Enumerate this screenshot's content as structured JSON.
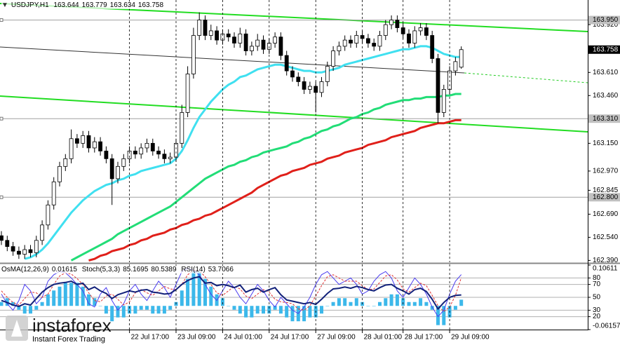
{
  "chart_data": [
    {
      "type": "candlestick",
      "symbol": "USDJPY,H1",
      "categories": [
        null,
        null,
        null,
        null,
        null,
        null,
        null,
        null,
        null,
        null,
        null,
        null,
        null,
        null,
        null,
        null,
        null,
        null,
        null,
        null,
        null,
        null,
        "22 Jul 17:00",
        null,
        null,
        null,
        null,
        null,
        null,
        null,
        "23 Jul 09:00",
        null,
        null,
        null,
        null,
        null,
        null,
        null,
        "24 Jul 01:00",
        null,
        null,
        null,
        null,
        null,
        null,
        null,
        "24 Jul 17:00",
        null,
        null,
        null,
        null,
        null,
        null,
        null,
        "27 Jul 09:00",
        null,
        null,
        null,
        null,
        null,
        null,
        null,
        "28 Jul 01:00",
        null,
        null,
        null,
        null,
        null,
        null,
        "28 Jul 17:00",
        null,
        null,
        null,
        null,
        null,
        null,
        null,
        "29 Jul 09:00",
        null,
        null
      ],
      "open": [
        162.55,
        162.52,
        162.48,
        162.45,
        162.43,
        162.46,
        162.44,
        162.52,
        162.62,
        162.75,
        162.9,
        163.0,
        163.05,
        163.18,
        163.15,
        163.2,
        163.12,
        163.16,
        163.1,
        163.05,
        162.92,
        163.0,
        163.05,
        163.1,
        163.08,
        163.12,
        163.15,
        163.1,
        163.08,
        163.05,
        163.06,
        163.15,
        163.35,
        163.6,
        163.85,
        163.95,
        163.85,
        163.88,
        163.82,
        163.86,
        163.84,
        163.8,
        163.86,
        163.75,
        163.78,
        163.82,
        163.76,
        163.8,
        163.84,
        163.72,
        163.62,
        163.58,
        163.55,
        163.5,
        163.52,
        163.48,
        163.55,
        163.65,
        163.75,
        163.78,
        163.82,
        163.8,
        163.85,
        163.83,
        163.8,
        163.78,
        163.85,
        163.92,
        163.95,
        163.9,
        163.86,
        163.8,
        163.88,
        163.9,
        163.85,
        163.7,
        163.35,
        163.5,
        163.62,
        163.644
      ],
      "high": [
        162.58,
        162.55,
        162.51,
        162.48,
        162.49,
        162.49,
        162.55,
        162.65,
        162.78,
        162.93,
        163.03,
        163.08,
        163.24,
        163.21,
        163.23,
        163.23,
        163.19,
        163.19,
        163.13,
        163.08,
        163.03,
        163.08,
        163.13,
        163.13,
        163.15,
        163.18,
        163.18,
        163.13,
        163.11,
        163.09,
        163.18,
        163.4,
        163.65,
        163.9,
        164.0,
        163.98,
        163.92,
        163.91,
        163.89,
        163.89,
        163.87,
        163.9,
        163.89,
        163.81,
        163.86,
        163.85,
        163.83,
        163.87,
        163.87,
        163.75,
        163.65,
        163.61,
        163.58,
        163.55,
        163.55,
        163.58,
        163.68,
        163.78,
        163.81,
        163.85,
        163.85,
        163.88,
        163.88,
        163.86,
        163.83,
        163.88,
        163.95,
        163.98,
        163.98,
        163.93,
        163.89,
        163.91,
        163.93,
        163.93,
        163.88,
        163.73,
        163.53,
        163.65,
        163.71,
        163.779
      ],
      "low": [
        162.49,
        162.45,
        162.42,
        162.4,
        162.4,
        162.41,
        162.41,
        162.49,
        162.59,
        162.72,
        162.87,
        162.97,
        163.02,
        163.12,
        163.12,
        163.09,
        163.09,
        163.07,
        163.02,
        162.75,
        162.89,
        162.97,
        163.02,
        163.05,
        163.05,
        163.09,
        163.07,
        163.05,
        163.02,
        163.02,
        163.03,
        163.12,
        163.32,
        163.57,
        163.82,
        163.82,
        163.82,
        163.79,
        163.79,
        163.81,
        163.77,
        163.77,
        163.72,
        163.72,
        163.75,
        163.73,
        163.73,
        163.77,
        163.69,
        163.59,
        163.55,
        163.52,
        163.47,
        163.47,
        163.35,
        163.45,
        163.52,
        163.62,
        163.72,
        163.75,
        163.77,
        163.77,
        163.8,
        163.77,
        163.75,
        163.75,
        163.82,
        163.89,
        163.87,
        163.83,
        163.77,
        163.77,
        163.85,
        163.82,
        163.67,
        163.28,
        163.32,
        163.47,
        163.59,
        163.634
      ],
      "close": [
        162.52,
        162.48,
        162.45,
        162.43,
        162.46,
        162.44,
        162.52,
        162.62,
        162.75,
        162.9,
        163.0,
        163.05,
        163.18,
        163.15,
        163.2,
        163.12,
        163.16,
        163.1,
        163.05,
        162.92,
        163.0,
        163.05,
        163.1,
        163.08,
        163.12,
        163.15,
        163.1,
        163.08,
        163.05,
        163.06,
        163.15,
        163.35,
        163.6,
        163.85,
        163.95,
        163.85,
        163.88,
        163.82,
        163.86,
        163.84,
        163.8,
        163.86,
        163.75,
        163.78,
        163.82,
        163.76,
        163.8,
        163.84,
        163.72,
        163.62,
        163.58,
        163.55,
        163.5,
        163.52,
        163.48,
        163.55,
        163.65,
        163.75,
        163.78,
        163.82,
        163.8,
        163.85,
        163.83,
        163.8,
        163.78,
        163.85,
        163.92,
        163.95,
        163.9,
        163.86,
        163.8,
        163.88,
        163.9,
        163.85,
        163.7,
        163.35,
        163.5,
        163.62,
        163.68,
        163.758
      ],
      "lines": [
        {
          "color": "#40e0f0",
          "values": [
            null,
            null,
            null,
            null,
            162.4,
            162.41,
            162.43,
            162.46,
            162.5,
            162.55,
            162.6,
            162.65,
            162.7,
            162.74,
            162.78,
            162.81,
            162.84,
            162.86,
            162.88,
            162.89,
            162.91,
            162.92,
            162.94,
            162.95,
            162.97,
            162.98,
            162.99,
            163.0,
            163.01,
            163.02,
            163.05,
            163.1,
            163.17,
            163.25,
            163.32,
            163.37,
            163.42,
            163.46,
            163.5,
            163.53,
            163.55,
            163.58,
            163.59,
            163.61,
            163.63,
            163.64,
            163.65,
            163.66,
            163.66,
            163.65,
            163.64,
            163.63,
            163.62,
            163.62,
            163.61,
            163.61,
            163.62,
            163.63,
            163.64,
            163.66,
            163.67,
            163.68,
            163.69,
            163.7,
            163.71,
            163.72,
            163.73,
            163.74,
            163.75,
            163.76,
            163.76,
            163.77,
            163.78,
            163.78,
            163.77,
            163.75,
            163.73,
            163.72,
            163.71,
            163.71
          ]
        },
        {
          "color": "#22dd77",
          "values": [
            null,
            null,
            null,
            null,
            null,
            null,
            null,
            null,
            null,
            null,
            null,
            null,
            162.39,
            162.41,
            162.43,
            162.45,
            162.47,
            162.49,
            162.51,
            162.53,
            162.56,
            162.58,
            162.6,
            162.62,
            162.64,
            162.66,
            162.68,
            162.7,
            162.72,
            162.74,
            162.77,
            162.8,
            162.83,
            162.86,
            162.89,
            162.92,
            162.94,
            162.96,
            162.98,
            163.0,
            163.01,
            163.03,
            163.04,
            163.06,
            163.07,
            163.09,
            163.1,
            163.11,
            163.12,
            163.13,
            163.15,
            163.16,
            163.18,
            163.19,
            163.21,
            163.23,
            163.24,
            163.26,
            163.27,
            163.29,
            163.31,
            163.32,
            163.34,
            163.35,
            163.37,
            163.38,
            163.4,
            163.41,
            163.42,
            163.43,
            163.43,
            163.44,
            163.44,
            163.45,
            163.45,
            163.45,
            163.46,
            163.46,
            163.47,
            163.47
          ]
        },
        {
          "color": "#e0201a",
          "values": [
            null,
            null,
            null,
            null,
            null,
            null,
            null,
            null,
            null,
            null,
            null,
            null,
            null,
            null,
            null,
            162.39,
            162.4,
            162.42,
            162.43,
            162.45,
            162.46,
            162.47,
            162.49,
            162.5,
            162.52,
            162.53,
            162.55,
            162.56,
            162.57,
            162.59,
            162.6,
            162.62,
            162.63,
            162.65,
            162.66,
            162.68,
            162.69,
            162.71,
            162.73,
            162.75,
            162.77,
            162.79,
            162.81,
            162.83,
            162.86,
            162.88,
            162.9,
            162.92,
            162.94,
            162.95,
            162.97,
            162.98,
            162.99,
            163.01,
            163.02,
            163.03,
            163.05,
            163.06,
            163.07,
            163.09,
            163.1,
            163.11,
            163.12,
            163.14,
            163.15,
            163.16,
            163.17,
            163.19,
            163.2,
            163.21,
            163.22,
            163.23,
            163.25,
            163.26,
            163.27,
            163.28,
            163.28,
            163.29,
            163.3,
            163.3
          ]
        }
      ],
      "ylim": [
        162.378,
        164.08
      ],
      "yticks": [
        {
          "value": 163.92,
          "label": "163.920"
        },
        {
          "value": 163.61,
          "label": "163.610"
        },
        {
          "value": 163.46,
          "label": "163.460"
        },
        {
          "value": 163.15,
          "label": "163.150"
        },
        {
          "value": 162.97,
          "label": "162.970"
        },
        162.845,
        {
          "value": 162.69,
          "label": "162.690"
        },
        {
          "value": 162.54,
          "label": "162.540"
        },
        {
          "value": 162.39,
          "label": "162.390"
        }
      ],
      "levels": [
        {
          "value": 163.95,
          "label": "163.950"
        },
        {
          "value": 163.31,
          "label": "163.310"
        },
        {
          "value": 162.8,
          "label": "162.800"
        }
      ],
      "grid": true
    },
    {
      "type": "oscillator",
      "series": [
        {
          "name": "OsMA(12,26,9)",
          "color": "#3cb8ea",
          "axis": "y2",
          "values": [
            0.01,
            0.02,
            0.01,
            -0.01,
            -0.02,
            -0.02,
            -0.01,
            0.01,
            0.03,
            0.04,
            0.05,
            0.06,
            0.06,
            0.06,
            0.05,
            0.03,
            0.02,
            0.0,
            -0.02,
            -0.04,
            -0.03,
            -0.03,
            -0.02,
            -0.02,
            -0.01,
            -0.01,
            -0.02,
            -0.02,
            -0.02,
            -0.01,
            0.01,
            0.04,
            0.07,
            0.09,
            0.09,
            0.07,
            0.05,
            0.03,
            0.02,
            0.0,
            -0.01,
            -0.02,
            -0.03,
            -0.03,
            -0.02,
            -0.02,
            -0.02,
            -0.01,
            -0.02,
            -0.03,
            -0.04,
            -0.04,
            -0.04,
            -0.03,
            -0.03,
            -0.02,
            0.0,
            0.01,
            0.02,
            0.02,
            0.01,
            0.02,
            0.01,
            0.0,
            0.0,
            0.01,
            0.02,
            0.03,
            0.03,
            0.02,
            0.01,
            0.01,
            0.02,
            0.01,
            -0.01,
            -0.05,
            -0.05,
            -0.03,
            -0.01,
            0.01615
          ]
        },
        {
          "name": "Stoch(5,3,3)",
          "color": "#4a3cf0",
          "values": [
            55,
            40,
            30,
            45,
            70,
            60,
            40,
            50,
            75,
            85,
            90,
            88,
            80,
            70,
            60,
            40,
            35,
            55,
            65,
            45,
            30,
            40,
            60,
            70,
            55,
            45,
            60,
            75,
            65,
            50,
            70,
            90,
            95,
            92,
            85,
            70,
            55,
            45,
            60,
            75,
            65,
            50,
            40,
            55,
            70,
            60,
            45,
            35,
            50,
            40,
            30,
            25,
            35,
            50,
            70,
            85,
            90,
            80,
            70,
            75,
            80,
            70,
            55,
            60,
            75,
            85,
            90,
            80,
            60,
            50,
            65,
            80,
            70,
            55,
            35,
            20,
            30,
            55,
            75,
            85.1695
          ]
        },
        {
          "color": "#e03030",
          "dashed": true,
          "values": [
            60,
            50,
            42,
            38,
            48,
            58,
            57,
            50,
            55,
            70,
            83,
            88,
            86,
            79,
            70,
            57,
            45,
            43,
            52,
            55,
            47,
            38,
            43,
            57,
            62,
            57,
            53,
            60,
            67,
            63,
            62,
            70,
            85,
            92,
            91,
            82,
            70,
            57,
            53,
            60,
            67,
            63,
            52,
            48,
            55,
            62,
            58,
            47,
            43,
            42,
            40,
            32,
            30,
            37,
            52,
            68,
            82,
            85,
            80,
            75,
            75,
            75,
            68,
            62,
            63,
            73,
            83,
            85,
            77,
            63,
            58,
            65,
            72,
            68,
            53,
            37,
            28,
            35,
            53,
            80.5389
          ]
        },
        {
          "name": "RSI(14)",
          "color": "#12217a",
          "values": [
            45,
            42,
            38,
            36,
            40,
            38,
            48,
            58,
            65,
            70,
            72,
            73,
            75,
            70,
            72,
            62,
            66,
            60,
            56,
            48,
            54,
            57,
            60,
            58,
            61,
            62,
            58,
            57,
            55,
            56,
            62,
            70,
            76,
            80,
            82,
            72,
            73,
            68,
            70,
            68,
            65,
            69,
            58,
            62,
            64,
            58,
            62,
            65,
            54,
            46,
            44,
            42,
            40,
            42,
            39,
            47,
            56,
            63,
            64,
            66,
            64,
            67,
            65,
            62,
            60,
            65,
            69,
            70,
            64,
            60,
            55,
            62,
            64,
            59,
            47,
            32,
            42,
            50,
            53,
            53.7066
          ]
        }
      ],
      "ylim": [
        0,
        100
      ],
      "yticks": [
        80,
        70,
        50,
        30,
        20
      ],
      "y2lim": [
        -0.06157,
        0.10611
      ],
      "y2ticks": [
        0.10611,
        -0.06157
      ]
    }
  ],
  "watermark": {
    "brand": "instaforex",
    "tagline": "Instant Forex Trading"
  }
}
